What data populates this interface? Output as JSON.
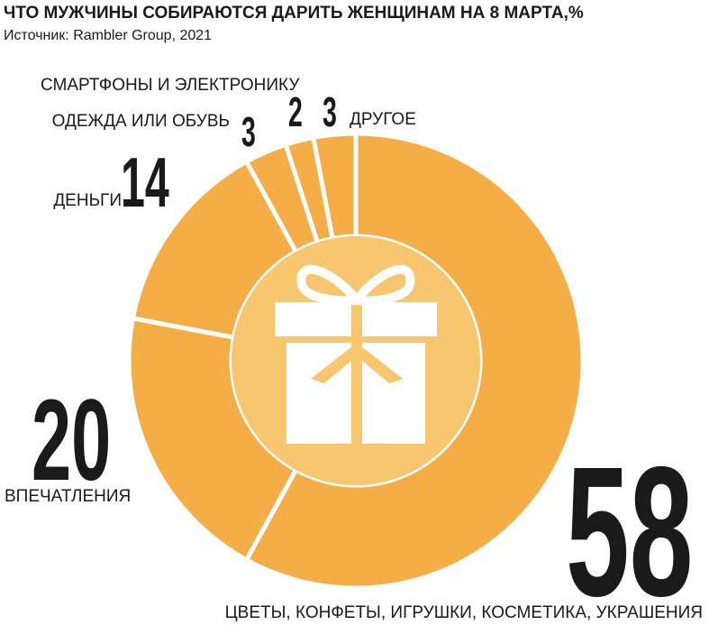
{
  "chart_data": {
    "type": "donut",
    "title": "ЧТО МУЖЧИНЫ СОБИРАЮТСЯ ДАРИТЬ ЖЕНЩИНАМ НА 8 МАРТА,%",
    "subtitle": "Источник: Rambler Group, 2021",
    "categories": [
      "ЦВЕТЫ, КОНФЕТЫ, ИГРУШКИ, КОСМЕТИКА, УКРАШЕНИЯ",
      "ВПЕЧАТЛЕНИЯ",
      "ДЕНЬГИ",
      "ОДЕЖДА ИЛИ ОБУВЬ",
      "СМАРТФОНЫ И ЭЛЕКТРОНИКУ",
      "ДРУГОЕ"
    ],
    "values": [
      58,
      20,
      14,
      3,
      2,
      3
    ],
    "color": "#f5ad45"
  }
}
